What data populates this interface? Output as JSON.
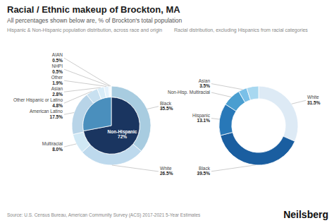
{
  "title": "Racial / Ethnic makeup of Brockton, MA",
  "subtitle": "All percentages shown below are, % of Brockton's total population",
  "annotations": [
    "Source: U.S. Census Bureau, American Community Survey (ACS) 2017-2021 5-Year Estimates",
    "Neilsberg"
  ],
  "chart_data": [
    {
      "type": "pie",
      "title": "Hispanic & Non-Hispanic population distribution, across race and origin",
      "data_labels": true,
      "series": [
        {
          "categories": [
            "Black",
            "White",
            "Multiracial",
            "American Latino",
            "Other Hispanic or Latino",
            "Asian",
            "Other",
            "NHPI",
            "AIAN"
          ],
          "values": [
            35.5,
            26.5,
            8.0,
            17.5,
            4.8,
            2.8,
            1.9,
            0.5,
            0.5
          ],
          "value_labels": [
            "35.5%",
            "26.5%",
            "8.0%",
            "17.5%",
            "4.8%",
            "2.8%",
            "1.9%",
            "0.5%",
            "0.5%"
          ],
          "colors": [
            "#a8cce0",
            "#bdd9ed",
            "#d0e8f5",
            "#b8d4e8",
            "#c8e0f0",
            "#d8ecf8",
            "#e4f2fc",
            "#eef7fd",
            "#f4fbfe"
          ]
        },
        {
          "categories": [
            "Non-Hispanic",
            null
          ],
          "values": [
            72.0,
            28.0
          ],
          "value_labels": [
            "72%",
            null
          ],
          "colors": [
            "#1a3560",
            "#4a8fbd"
          ]
        }
      ]
    },
    {
      "type": "pie",
      "title": "Racial distribution, excluding Hispanics from racial categories",
      "data_labels": true,
      "categories": [
        "White",
        "Black",
        "Hispanic",
        "Non-Hisp. Multiracial",
        "Asian",
        null
      ],
      "values": [
        31.5,
        39.5,
        13.1,
        7.5,
        3.5,
        4.9
      ],
      "value_labels": [
        "31.5%",
        "39.5%",
        "13.1%",
        null,
        "3.5%",
        null
      ],
      "colors": [
        "#ddeaf5",
        "#1a5ea0",
        "#2878b8",
        "#4a9ed0",
        "#7ac0e8",
        "#a8d8f0"
      ]
    }
  ]
}
